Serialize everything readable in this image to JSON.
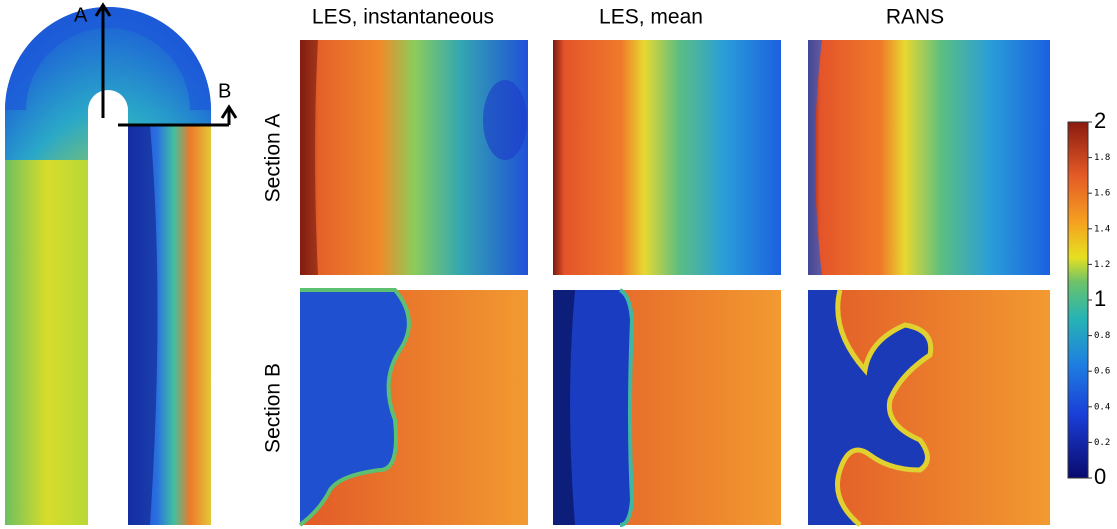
{
  "markers": {
    "a": "A",
    "b": "B"
  },
  "columns": [
    "LES, instantaneous",
    "LES, mean",
    "RANS"
  ],
  "rows": [
    "Section A",
    "Section B"
  ],
  "colorbar": {
    "lim": [
      0,
      2
    ],
    "ticks": [
      0,
      0.2,
      0.4,
      0.6,
      0.8,
      1,
      1.2,
      1.4,
      1.6,
      1.8,
      2
    ]
  }
}
